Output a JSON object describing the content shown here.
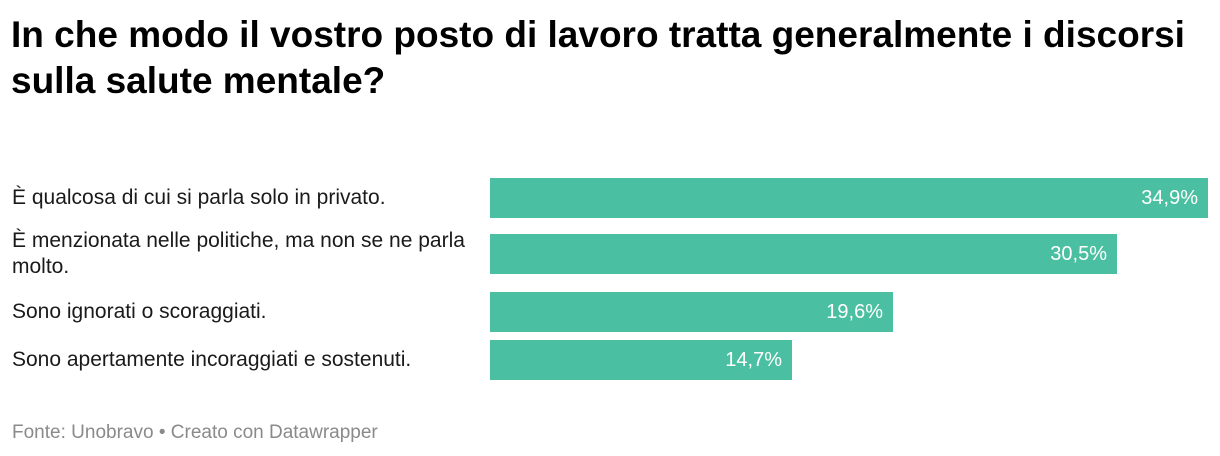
{
  "title": "In che modo il vostro posto di lavoro tratta generalmente i discorsi sulla salute mentale?",
  "footer": {
    "source_label": "Fonte:",
    "source": "Unobravo",
    "separator": "•",
    "credit": "Creato con Datawrapper"
  },
  "colors": {
    "bar": "#4bbfa1",
    "value_text": "#ffffff"
  },
  "chart_data": {
    "type": "bar",
    "orientation": "horizontal",
    "categories": [
      "È qualcosa di cui si parla solo in privato.",
      "È menzionata nelle politiche, ma non se ne parla molto.",
      "Sono ignorati o scoraggiati.",
      "Sono apertamente incoraggiati e sostenuti."
    ],
    "values": [
      34.9,
      30.5,
      19.6,
      14.7
    ],
    "value_labels": [
      "34,9%",
      "30,5%",
      "19,6%",
      "14,7%"
    ],
    "unit": "%",
    "xlim": [
      0,
      34.9
    ],
    "grid": false,
    "legend": "none"
  }
}
